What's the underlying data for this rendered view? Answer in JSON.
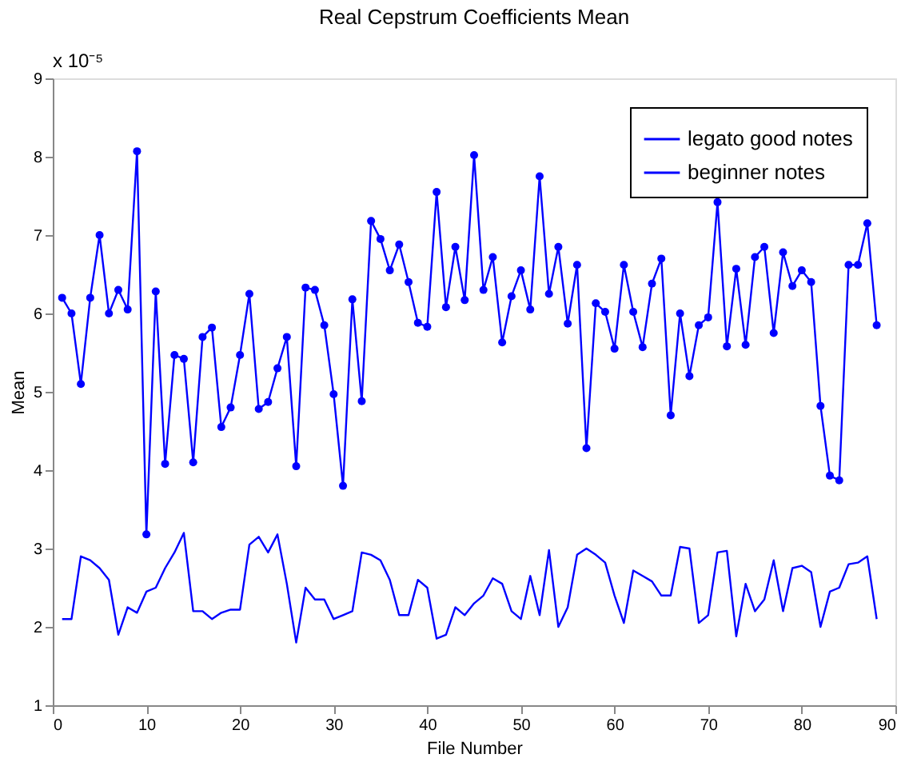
{
  "chart_data": {
    "type": "line",
    "title": "Real Cepstrum Coefficients Mean",
    "xlabel": "File Number",
    "ylabel": "Mean",
    "annotations": [
      "x 10⁻⁵"
    ],
    "x": [
      1,
      2,
      3,
      4,
      5,
      6,
      7,
      8,
      9,
      10,
      11,
      12,
      13,
      14,
      15,
      16,
      17,
      18,
      19,
      20,
      21,
      22,
      23,
      24,
      25,
      26,
      27,
      28,
      29,
      30,
      31,
      32,
      33,
      34,
      35,
      36,
      37,
      38,
      39,
      40,
      41,
      42,
      43,
      44,
      45,
      46,
      47,
      48,
      49,
      50,
      51,
      52,
      53,
      54,
      55,
      56,
      57,
      58,
      59,
      60,
      61,
      62,
      63,
      64,
      65,
      66,
      67,
      68,
      69,
      70,
      71,
      72,
      73,
      74,
      75,
      76,
      77,
      78,
      79,
      80,
      81,
      82,
      83,
      84,
      85,
      86,
      87,
      88
    ],
    "series": [
      {
        "name": "legato good notes",
        "color": "#0000ff",
        "marker": "none",
        "values": [
          2.1,
          2.1,
          2.9,
          2.85,
          2.75,
          2.6,
          1.9,
          2.25,
          2.18,
          2.45,
          2.5,
          2.75,
          2.95,
          3.2,
          2.2,
          2.2,
          2.1,
          2.18,
          2.22,
          2.22,
          3.05,
          3.15,
          2.95,
          3.18,
          2.55,
          1.8,
          2.5,
          2.35,
          2.35,
          2.1,
          2.15,
          2.2,
          2.95,
          2.92,
          2.85,
          2.6,
          2.15,
          2.15,
          2.6,
          2.5,
          1.85,
          1.9,
          2.25,
          2.15,
          2.3,
          2.4,
          2.62,
          2.55,
          2.2,
          2.1,
          2.65,
          2.15,
          2.98,
          2.0,
          2.25,
          2.92,
          3.0,
          2.92,
          2.82,
          2.4,
          2.05,
          2.72,
          2.65,
          2.58,
          2.4,
          2.4,
          3.02,
          3.0,
          2.05,
          2.15,
          2.95,
          2.97,
          1.88,
          2.55,
          2.2,
          2.35,
          2.85,
          2.2,
          2.75,
          2.78,
          2.7,
          2.0,
          2.45,
          2.5,
          2.8,
          2.82,
          2.9,
          2.1
        ]
      },
      {
        "name": "beginner notes",
        "color": "#0000ff",
        "marker": "circle",
        "values": [
          6.2,
          6.0,
          5.1,
          6.2,
          7.0,
          6.0,
          6.3,
          6.05,
          8.07,
          3.18,
          6.28,
          4.08,
          5.47,
          5.42,
          4.1,
          5.7,
          5.82,
          4.55,
          4.8,
          5.47,
          6.25,
          4.78,
          4.87,
          5.3,
          5.7,
          4.05,
          6.33,
          6.3,
          5.85,
          4.97,
          3.8,
          6.18,
          4.88,
          7.18,
          6.95,
          6.55,
          6.88,
          6.4,
          5.88,
          5.83,
          7.55,
          6.08,
          6.85,
          6.17,
          8.02,
          6.3,
          6.72,
          5.63,
          6.22,
          6.55,
          6.05,
          7.75,
          6.25,
          6.85,
          5.87,
          6.62,
          4.28,
          6.13,
          6.02,
          5.55,
          6.62,
          6.02,
          5.57,
          6.38,
          6.7,
          4.7,
          6.0,
          5.2,
          5.85,
          5.95,
          7.42,
          5.58,
          6.57,
          5.6,
          6.72,
          6.85,
          5.75,
          6.78,
          6.35,
          6.55,
          6.4,
          4.82,
          3.93,
          3.87,
          6.62,
          6.62,
          7.15,
          5.85
        ]
      }
    ],
    "xlim": [
      0,
      90
    ],
    "xticks": [
      0,
      10,
      20,
      30,
      40,
      50,
      60,
      70,
      80,
      90
    ],
    "ylim": [
      1,
      9
    ],
    "yticks": [
      1,
      2,
      3,
      4,
      5,
      6,
      7,
      8,
      9
    ],
    "grid": false,
    "legend": "top right",
    "line_style": "solid"
  }
}
